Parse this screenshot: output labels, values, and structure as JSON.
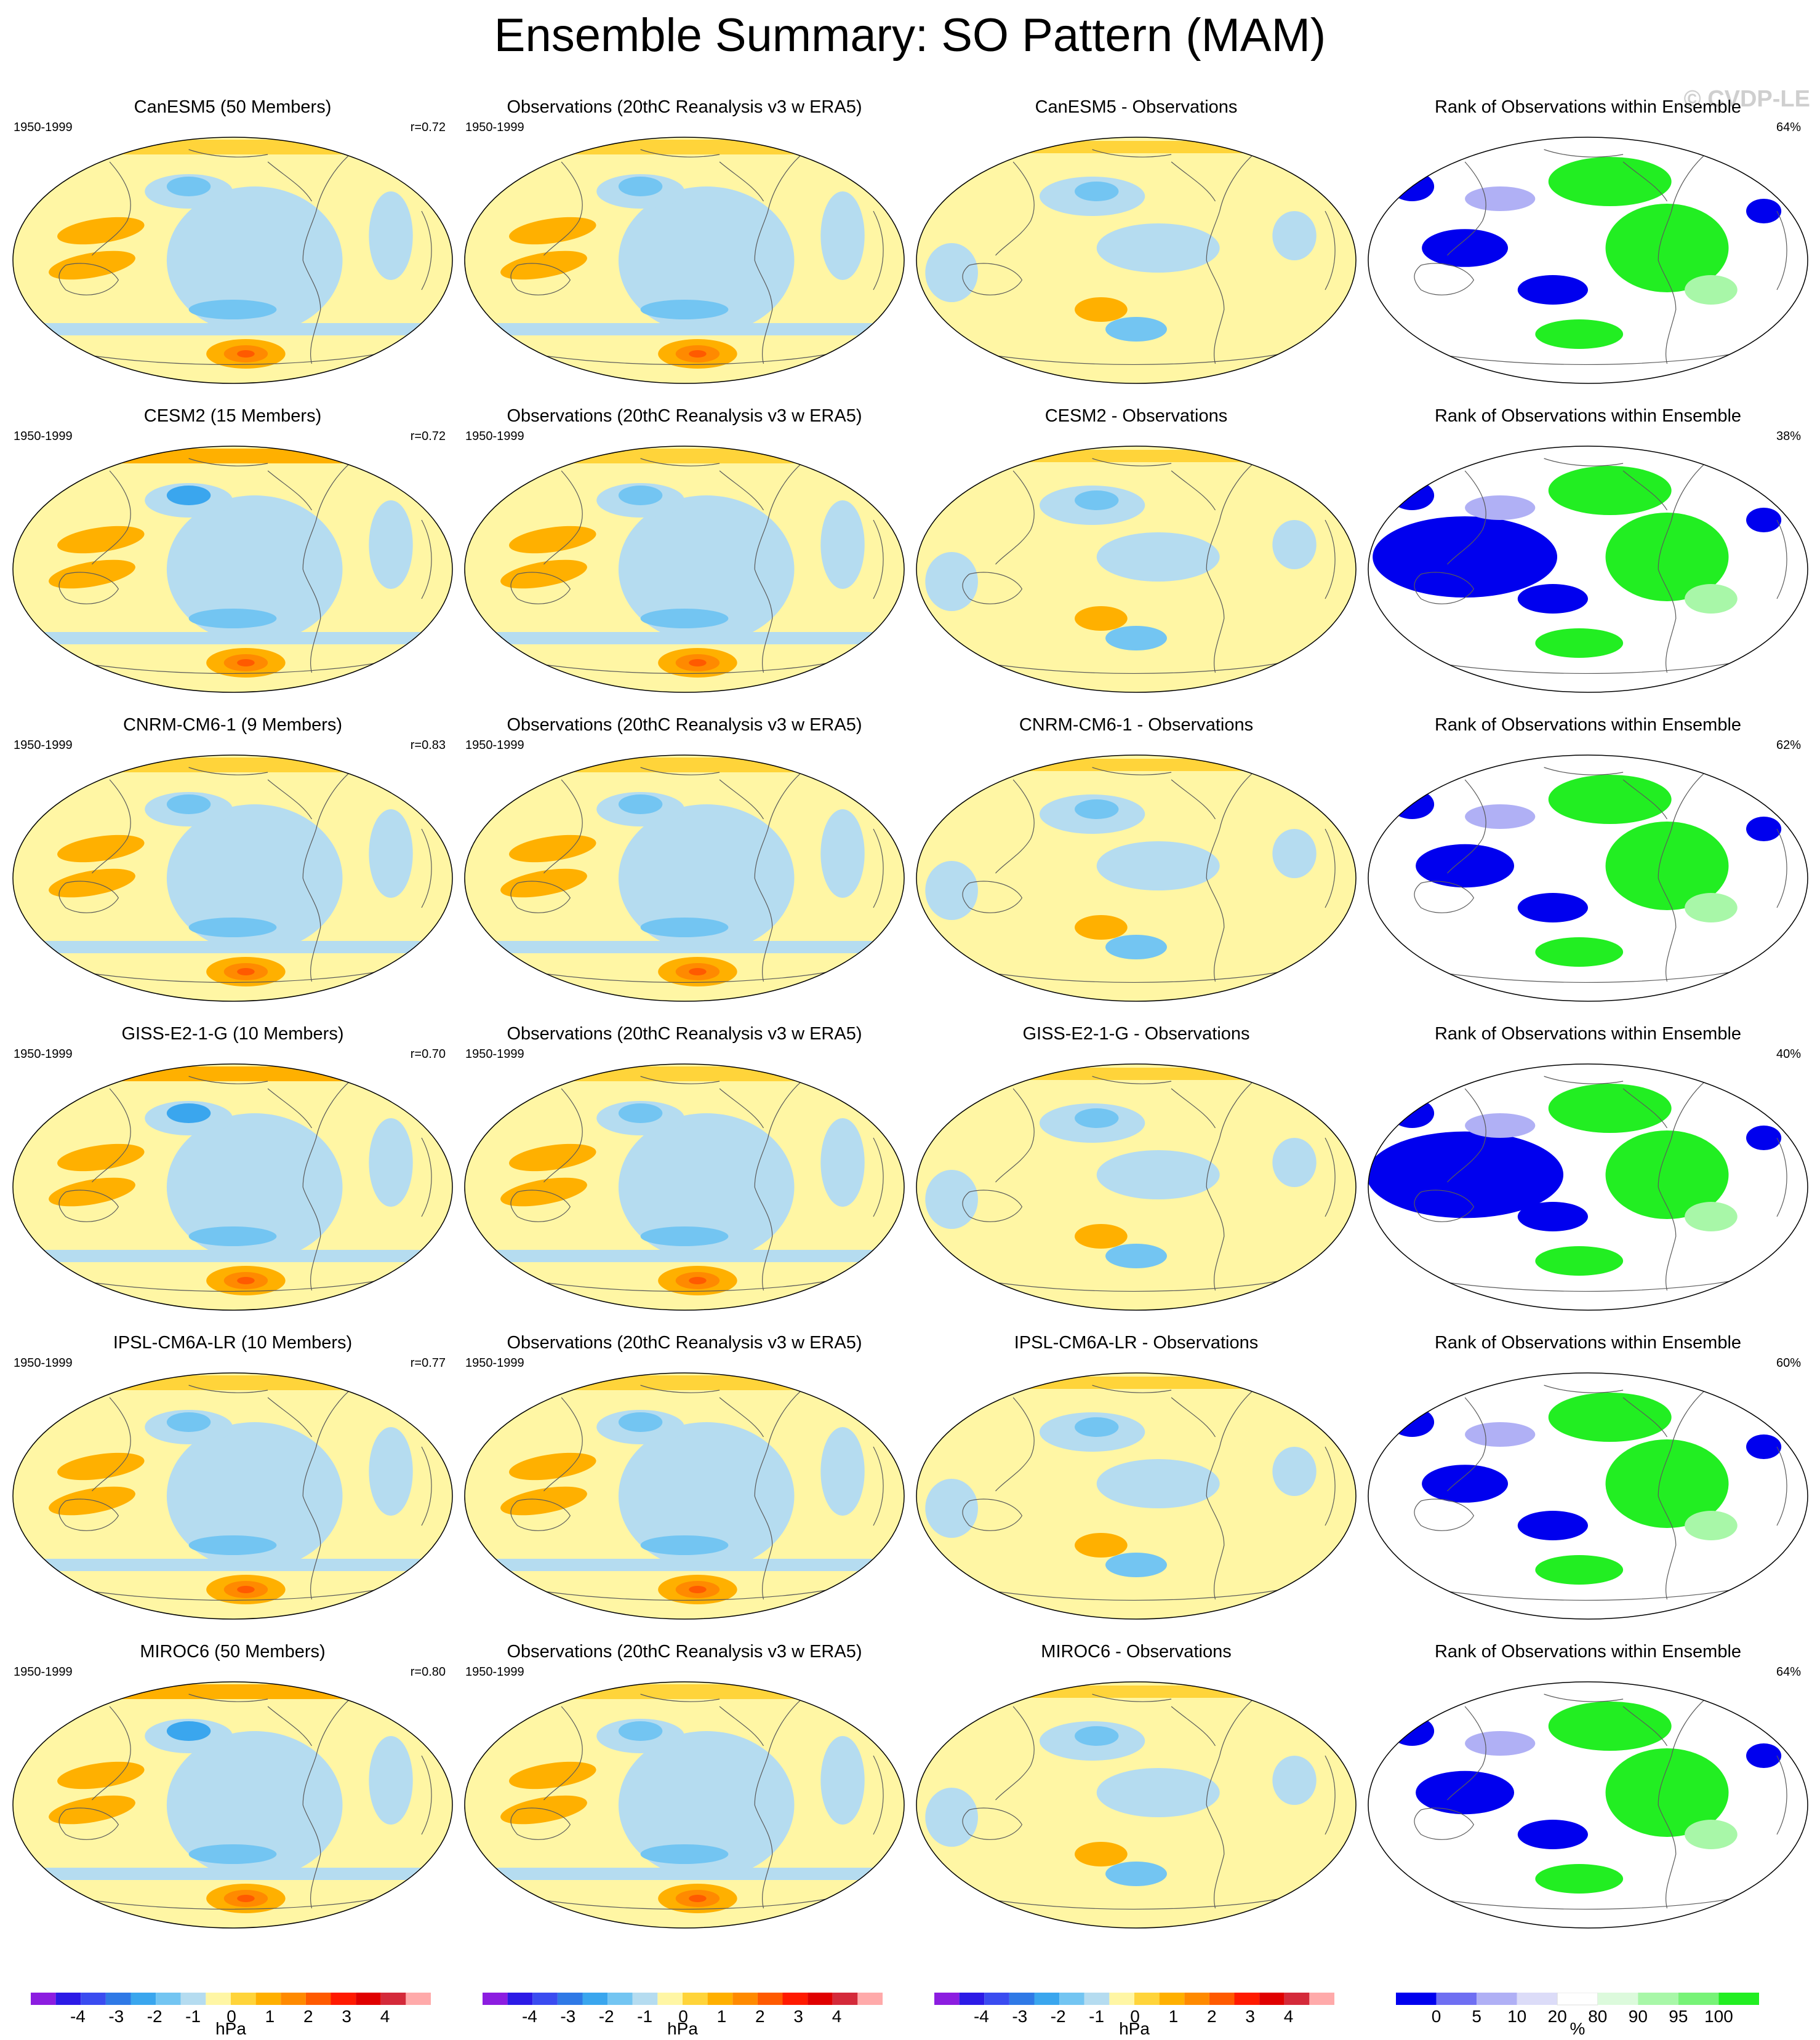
{
  "title": "Ensemble Summary: SO Pattern (MAM)",
  "watermark": "© CVDP-LE",
  "colors": {
    "land_outline": "#5a5a5a",
    "map_border": "#000000",
    "hpa_scale": [
      "#8c1de0",
      "#2c1ae6",
      "#3a4cf0",
      "#2f79e6",
      "#3aa6ee",
      "#73c5f2",
      "#b5dcf0",
      "#fff6a4",
      "#ffd43a",
      "#ffb000",
      "#ff8a00",
      "#ff5a00",
      "#ff1a00",
      "#e00000",
      "#d42a3a",
      "#ffaaaa"
    ],
    "rank_scale": [
      "#0000ee",
      "#6f6ff2",
      "#b0b0f5",
      "#dcdcf8",
      "#ffffff",
      "#dcfadc",
      "#a8f7a8",
      "#77f377",
      "#22ee22"
    ]
  },
  "chart_data": {
    "type": "heatmap",
    "rows": [
      {
        "model": "CanESM5",
        "model_panel": {
          "title": "CanESM5 (50 Members)",
          "years": "1950-1999",
          "stat": "r=0.72"
        },
        "obs_panel": {
          "title": "Observations (20thC Reanalysis v3 w ERA5)",
          "years": "1950-1999"
        },
        "diff_panel": {
          "title": "CanESM5 - Observations"
        },
        "rank_panel": {
          "title": "Rank of Observations within Ensemble",
          "stat": "64%"
        }
      },
      {
        "model": "CESM2",
        "model_panel": {
          "title": "CESM2 (15 Members)",
          "years": "1950-1999",
          "stat": "r=0.72"
        },
        "obs_panel": {
          "title": "Observations (20thC Reanalysis v3 w ERA5)",
          "years": "1950-1999"
        },
        "diff_panel": {
          "title": "CESM2 - Observations"
        },
        "rank_panel": {
          "title": "Rank of Observations within Ensemble",
          "stat": "38%"
        }
      },
      {
        "model": "CNRM-CM6-1",
        "model_panel": {
          "title": "CNRM-CM6-1 (9 Members)",
          "years": "1950-1999",
          "stat": "r=0.83"
        },
        "obs_panel": {
          "title": "Observations (20thC Reanalysis v3 w ERA5)",
          "years": "1950-1999"
        },
        "diff_panel": {
          "title": "CNRM-CM6-1 - Observations"
        },
        "rank_panel": {
          "title": "Rank of Observations within Ensemble",
          "stat": "62%"
        }
      },
      {
        "model": "GISS-E2-1-G",
        "model_panel": {
          "title": "GISS-E2-1-G (10 Members)",
          "years": "1950-1999",
          "stat": "r=0.70"
        },
        "obs_panel": {
          "title": "Observations (20thC Reanalysis v3 w ERA5)",
          "years": "1950-1999"
        },
        "diff_panel": {
          "title": "GISS-E2-1-G - Observations"
        },
        "rank_panel": {
          "title": "Rank of Observations within Ensemble",
          "stat": "40%"
        }
      },
      {
        "model": "IPSL-CM6A-LR",
        "model_panel": {
          "title": "IPSL-CM6A-LR (10 Members)",
          "years": "1950-1999",
          "stat": "r=0.77"
        },
        "obs_panel": {
          "title": "Observations (20thC Reanalysis v3 w ERA5)",
          "years": "1950-1999"
        },
        "diff_panel": {
          "title": "IPSL-CM6A-LR - Observations"
        },
        "rank_panel": {
          "title": "Rank of Observations within Ensemble",
          "stat": "60%"
        }
      },
      {
        "model": "MIROC6",
        "model_panel": {
          "title": "MIROC6 (50 Members)",
          "years": "1950-1999",
          "stat": "r=0.80"
        },
        "obs_panel": {
          "title": "Observations (20thC Reanalysis v3 w ERA5)",
          "years": "1950-1999"
        },
        "diff_panel": {
          "title": "MIROC6 - Observations"
        },
        "rank_panel": {
          "title": "Rank of Observations within Ensemble",
          "stat": "64%"
        }
      }
    ],
    "colorbars": [
      {
        "type": "hpa",
        "ticks": [
          "-4",
          "-3",
          "-2",
          "-1",
          "0",
          "1",
          "2",
          "3",
          "4"
        ],
        "unit": "hPa"
      },
      {
        "type": "hpa",
        "ticks": [
          "-4",
          "-3",
          "-2",
          "-1",
          "0",
          "1",
          "2",
          "3",
          "4"
        ],
        "unit": "hPa"
      },
      {
        "type": "hpa",
        "ticks": [
          "-4",
          "-3",
          "-2",
          "-1",
          "0",
          "1",
          "2",
          "3",
          "4"
        ],
        "unit": "hPa"
      },
      {
        "type": "rank",
        "ticks": [
          "0",
          "5",
          "10",
          "20",
          "80",
          "90",
          "95",
          "100"
        ],
        "unit": "%"
      }
    ]
  }
}
